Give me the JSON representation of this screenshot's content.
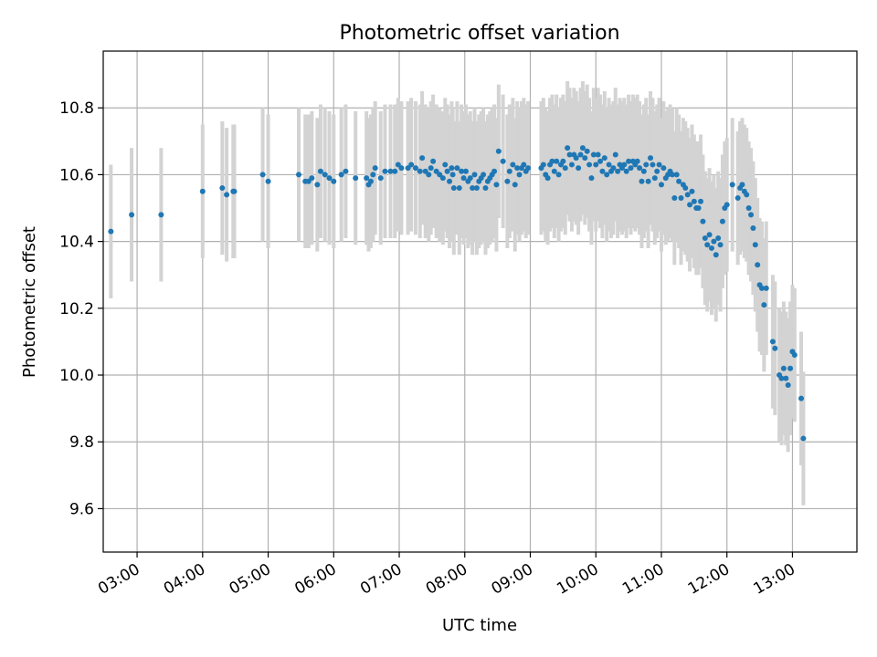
{
  "chart_data": {
    "type": "scatter",
    "title": "Photometric offset variation",
    "xlabel": "UTC time",
    "ylabel": "Photometric offset",
    "grid": true,
    "xlim": [
      "02:29",
      "13:59"
    ],
    "ylim": [
      9.47,
      10.97
    ],
    "x_ticks": [
      "03:00",
      "04:00",
      "05:00",
      "06:00",
      "07:00",
      "08:00",
      "09:00",
      "10:00",
      "11:00",
      "12:00",
      "13:00"
    ],
    "y_ticks": [
      9.6,
      9.8,
      10.0,
      10.2,
      10.4,
      10.6,
      10.8
    ],
    "colors": {
      "point": "#1f77b4",
      "errorbar": "#d3d3d3",
      "grid": "#b0b0b0"
    },
    "series": [
      {
        "errorbar_halfwidth": 0.2,
        "points": [
          [
            "02:36",
            10.43
          ],
          [
            "02:55",
            10.48
          ],
          [
            "03:22",
            10.48
          ],
          [
            "04:00",
            10.55
          ],
          [
            "04:18",
            10.56
          ],
          [
            "04:22",
            10.54
          ],
          [
            "04:28",
            10.55
          ],
          [
            "04:29",
            10.55
          ],
          [
            "04:55",
            10.6
          ],
          [
            "05:00",
            10.58
          ],
          [
            "05:28",
            10.6
          ],
          [
            "05:34",
            10.58
          ],
          [
            "05:37",
            10.58
          ],
          [
            "05:40",
            10.59
          ],
          [
            "05:45",
            10.57
          ],
          [
            "05:48",
            10.61
          ],
          [
            "05:52",
            10.6
          ],
          [
            "05:56",
            10.59
          ],
          [
            "06:00",
            10.58
          ],
          [
            "06:07",
            10.6
          ],
          [
            "06:11",
            10.61
          ],
          [
            "06:20",
            10.59
          ],
          [
            "06:30",
            10.59
          ],
          [
            "06:32",
            10.57
          ],
          [
            "06:34",
            10.58
          ],
          [
            "06:36",
            10.6
          ],
          [
            "06:38",
            10.62
          ],
          [
            "06:43",
            10.59
          ],
          [
            "06:47",
            10.61
          ],
          [
            "06:52",
            10.61
          ],
          [
            "06:56",
            10.61
          ],
          [
            "06:59",
            10.63
          ],
          [
            "07:02",
            10.62
          ],
          [
            "07:08",
            10.62
          ],
          [
            "07:11",
            10.63
          ],
          [
            "07:15",
            10.62
          ],
          [
            "07:19",
            10.61
          ],
          [
            "07:21",
            10.65
          ],
          [
            "07:24",
            10.61
          ],
          [
            "07:27",
            10.6
          ],
          [
            "07:29",
            10.62
          ],
          [
            "07:31",
            10.64
          ],
          [
            "07:34",
            10.61
          ],
          [
            "07:37",
            10.6
          ],
          [
            "07:40",
            10.59
          ],
          [
            "07:42",
            10.63
          ],
          [
            "07:44",
            10.61
          ],
          [
            "07:46",
            10.58
          ],
          [
            "07:48",
            10.62
          ],
          [
            "07:49",
            10.6
          ],
          [
            "07:50",
            10.56
          ],
          [
            "07:53",
            10.62
          ],
          [
            "07:55",
            10.56
          ],
          [
            "07:57",
            10.61
          ],
          [
            "07:59",
            10.59
          ],
          [
            "08:01",
            10.61
          ],
          [
            "08:03",
            10.58
          ],
          [
            "08:05",
            10.59
          ],
          [
            "08:07",
            10.56
          ],
          [
            "08:09",
            10.6
          ],
          [
            "08:11",
            10.56
          ],
          [
            "08:13",
            10.58
          ],
          [
            "08:15",
            10.59
          ],
          [
            "08:17",
            10.6
          ],
          [
            "08:19",
            10.56
          ],
          [
            "08:21",
            10.58
          ],
          [
            "08:23",
            10.59
          ],
          [
            "08:25",
            10.6
          ],
          [
            "08:27",
            10.61
          ],
          [
            "08:29",
            10.57
          ],
          [
            "08:31",
            10.67
          ],
          [
            "08:35",
            10.64
          ],
          [
            "08:39",
            10.58
          ],
          [
            "08:41",
            10.61
          ],
          [
            "08:44",
            10.63
          ],
          [
            "08:46",
            10.57
          ],
          [
            "08:48",
            10.62
          ],
          [
            "08:50",
            10.6
          ],
          [
            "08:52",
            10.62
          ],
          [
            "08:54",
            10.63
          ],
          [
            "08:56",
            10.61
          ],
          [
            "08:58",
            10.62
          ],
          [
            "09:10",
            10.62
          ],
          [
            "09:12",
            10.63
          ],
          [
            "09:14",
            10.6
          ],
          [
            "09:16",
            10.59
          ],
          [
            "09:18",
            10.63
          ],
          [
            "09:20",
            10.64
          ],
          [
            "09:22",
            10.61
          ],
          [
            "09:24",
            10.64
          ],
          [
            "09:26",
            10.6
          ],
          [
            "09:28",
            10.63
          ],
          [
            "09:30",
            10.64
          ],
          [
            "09:32",
            10.62
          ],
          [
            "09:34",
            10.68
          ],
          [
            "09:36",
            10.66
          ],
          [
            "09:38",
            10.63
          ],
          [
            "09:40",
            10.66
          ],
          [
            "09:42",
            10.65
          ],
          [
            "09:44",
            10.62
          ],
          [
            "09:46",
            10.66
          ],
          [
            "09:48",
            10.68
          ],
          [
            "09:50",
            10.65
          ],
          [
            "09:52",
            10.67
          ],
          [
            "09:54",
            10.63
          ],
          [
            "09:56",
            10.59
          ],
          [
            "09:58",
            10.66
          ],
          [
            "10:00",
            10.63
          ],
          [
            "10:02",
            10.66
          ],
          [
            "10:04",
            10.64
          ],
          [
            "10:06",
            10.61
          ],
          [
            "10:08",
            10.65
          ],
          [
            "10:10",
            10.6
          ],
          [
            "10:12",
            10.63
          ],
          [
            "10:14",
            10.61
          ],
          [
            "10:16",
            10.62
          ],
          [
            "10:18",
            10.66
          ],
          [
            "10:20",
            10.61
          ],
          [
            "10:22",
            10.63
          ],
          [
            "10:24",
            10.62
          ],
          [
            "10:26",
            10.63
          ],
          [
            "10:28",
            10.61
          ],
          [
            "10:30",
            10.64
          ],
          [
            "10:32",
            10.62
          ],
          [
            "10:34",
            10.64
          ],
          [
            "10:36",
            10.63
          ],
          [
            "10:38",
            10.64
          ],
          [
            "10:40",
            10.62
          ],
          [
            "10:42",
            10.58
          ],
          [
            "10:44",
            10.61
          ],
          [
            "10:46",
            10.63
          ],
          [
            "10:48",
            10.58
          ],
          [
            "10:50",
            10.65
          ],
          [
            "10:52",
            10.63
          ],
          [
            "10:54",
            10.59
          ],
          [
            "10:56",
            10.61
          ],
          [
            "10:58",
            10.63
          ],
          [
            "11:00",
            10.57
          ],
          [
            "11:02",
            10.62
          ],
          [
            "11:04",
            10.59
          ],
          [
            "11:06",
            10.6
          ],
          [
            "11:08",
            10.61
          ],
          [
            "11:10",
            10.6
          ],
          [
            "11:12",
            10.53
          ],
          [
            "11:14",
            10.6
          ],
          [
            "11:16",
            10.58
          ],
          [
            "11:18",
            10.53
          ],
          [
            "11:20",
            10.57
          ],
          [
            "11:22",
            10.56
          ],
          [
            "11:24",
            10.54
          ],
          [
            "11:26",
            10.51
          ],
          [
            "11:28",
            10.55
          ],
          [
            "11:30",
            10.52
          ],
          [
            "11:32",
            10.5
          ],
          [
            "11:34",
            10.5
          ],
          [
            "11:36",
            10.52
          ],
          [
            "11:38",
            10.46
          ],
          [
            "11:40",
            10.41
          ],
          [
            "11:42",
            10.39
          ],
          [
            "11:44",
            10.42
          ],
          [
            "11:46",
            10.38
          ],
          [
            "11:48",
            10.4
          ],
          [
            "11:50",
            10.36
          ],
          [
            "11:52",
            10.41
          ],
          [
            "11:54",
            10.39
          ],
          [
            "11:56",
            10.46
          ],
          [
            "11:58",
            10.5
          ],
          [
            "12:00",
            10.51
          ],
          [
            "12:05",
            10.57
          ],
          [
            "12:10",
            10.53
          ],
          [
            "12:12",
            10.56
          ],
          [
            "12:14",
            10.57
          ],
          [
            "12:16",
            10.55
          ],
          [
            "12:18",
            10.54
          ],
          [
            "12:20",
            10.5
          ],
          [
            "12:22",
            10.48
          ],
          [
            "12:24",
            10.44
          ],
          [
            "12:26",
            10.39
          ],
          [
            "12:28",
            10.33
          ],
          [
            "12:30",
            10.27
          ],
          [
            "12:32",
            10.26
          ],
          [
            "12:34",
            10.21
          ],
          [
            "12:36",
            10.26
          ],
          [
            "12:42",
            10.1
          ],
          [
            "12:44",
            10.08
          ],
          [
            "12:48",
            10.0
          ],
          [
            "12:50",
            9.99
          ],
          [
            "12:52",
            10.02
          ],
          [
            "12:54",
            9.99
          ],
          [
            "12:56",
            9.97
          ],
          [
            "12:58",
            10.02
          ],
          [
            "13:00",
            10.07
          ],
          [
            "13:02",
            10.06
          ],
          [
            "13:08",
            9.93
          ],
          [
            "13:10",
            9.81
          ]
        ]
      }
    ]
  }
}
